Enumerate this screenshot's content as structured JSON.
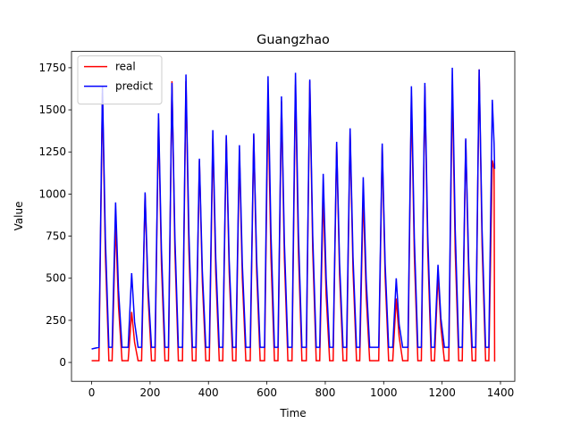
{
  "chart_data": {
    "type": "line",
    "title": "Guangzhao",
    "x_label": "Time",
    "y_label": "Value",
    "x": [
      0,
      25,
      37,
      47,
      59,
      70,
      82,
      92,
      104,
      125,
      137,
      147,
      159,
      171,
      183,
      193,
      205,
      217,
      229,
      239,
      251,
      263,
      275,
      285,
      297,
      311,
      323,
      333,
      345,
      357,
      369,
      379,
      391,
      403,
      415,
      425,
      437,
      449,
      461,
      471,
      483,
      494,
      506,
      516,
      528,
      543,
      555,
      565,
      577,
      592,
      604,
      614,
      626,
      638,
      650,
      660,
      672,
      686,
      698,
      708,
      720,
      735,
      747,
      757,
      769,
      781,
      793,
      803,
      815,
      827,
      839,
      849,
      861,
      873,
      885,
      895,
      907,
      918,
      930,
      940,
      952,
      983,
      995,
      1005,
      1017,
      1031,
      1043,
      1053,
      1065,
      1083,
      1095,
      1105,
      1117,
      1129,
      1141,
      1151,
      1163,
      1174,
      1186,
      1196,
      1208,
      1223,
      1235,
      1245,
      1257,
      1269,
      1281,
      1291,
      1303,
      1315,
      1327,
      1337,
      1349,
      1360,
      1372,
      1378,
      1380
    ],
    "series": [
      {
        "name": "real",
        "color": "#ff0000",
        "values": [
          10,
          10,
          1600,
          640,
          10,
          10,
          830,
          332,
          10,
          10,
          300,
          120,
          10,
          10,
          1000,
          400,
          10,
          10,
          1450,
          580,
          10,
          10,
          1670,
          668,
          10,
          10,
          1670,
          668,
          10,
          10,
          1200,
          480,
          10,
          10,
          1330,
          532,
          10,
          10,
          1340,
          536,
          10,
          10,
          1250,
          500,
          10,
          10,
          1350,
          540,
          10,
          10,
          1560,
          624,
          10,
          10,
          1550,
          620,
          10,
          10,
          1650,
          660,
          10,
          10,
          1670,
          668,
          10,
          10,
          1000,
          400,
          10,
          10,
          1300,
          520,
          10,
          10,
          1370,
          548,
          10,
          10,
          1000,
          400,
          10,
          10,
          1280,
          512,
          10,
          10,
          380,
          152,
          10,
          10,
          1580,
          632,
          10,
          10,
          1640,
          656,
          10,
          10,
          520,
          208,
          10,
          10,
          1650,
          660,
          10,
          10,
          1320,
          528,
          10,
          10,
          1740,
          696,
          10,
          10,
          1200,
          1150,
          5
        ]
      },
      {
        "name": "predict",
        "color": "#0000ff",
        "values": [
          80,
          90,
          1640,
          738,
          90,
          90,
          950,
          428,
          90,
          90,
          530,
          239,
          90,
          90,
          1010,
          455,
          90,
          90,
          1480,
          666,
          90,
          90,
          1660,
          747,
          90,
          90,
          1710,
          770,
          90,
          90,
          1210,
          545,
          90,
          90,
          1380,
          621,
          90,
          90,
          1350,
          608,
          90,
          90,
          1290,
          581,
          90,
          90,
          1360,
          612,
          90,
          90,
          1700,
          765,
          90,
          90,
          1580,
          711,
          90,
          90,
          1720,
          774,
          90,
          90,
          1680,
          756,
          90,
          90,
          1120,
          504,
          90,
          90,
          1310,
          590,
          90,
          90,
          1390,
          626,
          90,
          90,
          1100,
          495,
          90,
          90,
          1300,
          585,
          90,
          90,
          500,
          225,
          90,
          90,
          1640,
          738,
          90,
          90,
          1660,
          747,
          90,
          90,
          580,
          261,
          90,
          90,
          1750,
          788,
          90,
          90,
          1330,
          599,
          90,
          90,
          1740,
          783,
          90,
          90,
          1560,
          1300,
          1150
        ]
      }
    ],
    "xlim": [
      -69,
      1449
    ],
    "ylim": [
      -112,
      1847
    ],
    "xticks": [
      0,
      200,
      400,
      600,
      800,
      1000,
      1200,
      1400
    ],
    "yticks": [
      0,
      250,
      500,
      750,
      1000,
      1250,
      1500,
      1750
    ],
    "legend": "upper left",
    "grid": false
  }
}
